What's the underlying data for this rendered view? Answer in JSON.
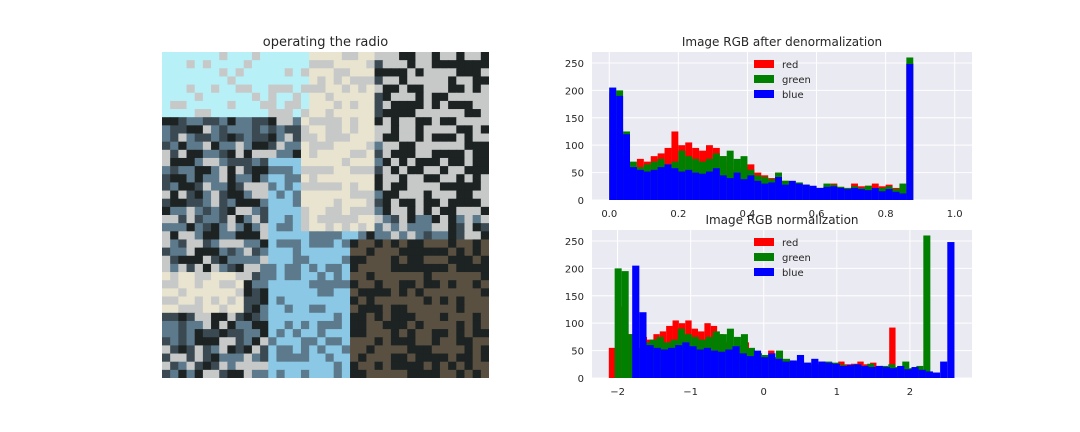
{
  "figure": {
    "image_title": "operating the radio",
    "image_description_colors": [
      "#b8f0f8",
      "#5d7a8c",
      "#3b4a52",
      "#8ac8e6",
      "#c7c9c8",
      "#1c2322",
      "#e8e4cf",
      "#5a5041"
    ]
  },
  "chart_data": [
    {
      "type": "bar",
      "title": "Image RGB after denormalization",
      "xlabel": "",
      "ylabel": "",
      "xlim": [
        -0.05,
        1.05
      ],
      "ylim": [
        0,
        270
      ],
      "xticks": [
        0.0,
        0.2,
        0.4,
        0.6,
        0.8,
        1.0
      ],
      "xtick_labels": [
        "0.0",
        "0.2",
        "0.4",
        "0.6",
        "0.8",
        "1.0"
      ],
      "yticks": [
        0,
        50,
        100,
        150,
        200,
        250
      ],
      "ytick_labels": [
        "0",
        "50",
        "100",
        "150",
        "200",
        "250"
      ],
      "grid": true,
      "legend": "top-center",
      "bin_start": 0.0,
      "bin_width": 0.02,
      "series": [
        {
          "name": "red",
          "color": "#ff0000",
          "values": [
            195,
            130,
            80,
            55,
            75,
            70,
            80,
            85,
            95,
            125,
            100,
            105,
            95,
            90,
            100,
            95,
            80,
            70,
            55,
            60,
            65,
            50,
            45,
            40,
            50,
            35,
            30,
            32,
            28,
            25,
            22,
            25,
            30,
            24,
            22,
            30,
            25,
            26,
            30,
            25,
            28,
            22,
            20,
            250
          ]
        },
        {
          "name": "green",
          "color": "#008000",
          "values": [
            205,
            200,
            125,
            70,
            60,
            65,
            70,
            75,
            65,
            70,
            90,
            80,
            75,
            70,
            75,
            85,
            80,
            90,
            75,
            80,
            55,
            45,
            42,
            38,
            50,
            35,
            30,
            32,
            28,
            25,
            22,
            30,
            28,
            24,
            22,
            25,
            22,
            26,
            20,
            22,
            25,
            20,
            30,
            260
          ]
        },
        {
          "name": "blue",
          "color": "#0000ff",
          "values": [
            205,
            190,
            120,
            60,
            55,
            52,
            55,
            60,
            65,
            58,
            52,
            55,
            50,
            48,
            52,
            58,
            45,
            40,
            50,
            38,
            45,
            35,
            30,
            32,
            42,
            28,
            35,
            30,
            28,
            26,
            22,
            24,
            25,
            22,
            20,
            22,
            20,
            18,
            22,
            16,
            20,
            15,
            12,
            248
          ]
        }
      ]
    },
    {
      "type": "bar",
      "title": "Image RGB normalization",
      "xlabel": "",
      "ylabel": "",
      "xlim": [
        -2.35,
        2.85
      ],
      "ylim": [
        0,
        270
      ],
      "xticks": [
        -2,
        -1,
        0,
        1,
        2
      ],
      "xtick_labels": [
        "−2",
        "−1",
        "0",
        "1",
        "2"
      ],
      "yticks": [
        0,
        50,
        100,
        150,
        200,
        250
      ],
      "ytick_labels": [
        "0",
        "50",
        "100",
        "150",
        "200",
        "250"
      ],
      "grid": true,
      "legend": "top-center",
      "series": [
        {
          "name": "red",
          "color": "#ff0000",
          "bin_start": -2.12,
          "bin_width": 0.0872,
          "values": [
            55,
            190,
            130,
            80,
            55,
            75,
            70,
            80,
            85,
            95,
            105,
            100,
            105,
            90,
            85,
            100,
            95,
            80,
            65,
            55,
            60,
            65,
            50,
            45,
            40,
            50,
            35,
            30,
            32,
            28,
            25,
            22,
            25,
            30,
            24,
            22,
            30,
            25,
            26,
            30,
            25,
            28,
            22,
            20,
            92
          ]
        },
        {
          "name": "green",
          "color": "#008000",
          "bin_start": -2.04,
          "bin_width": 0.096,
          "values": [
            200,
            195,
            80,
            50,
            65,
            70,
            75,
            65,
            70,
            90,
            80,
            75,
            70,
            75,
            85,
            80,
            90,
            75,
            80,
            55,
            45,
            42,
            38,
            50,
            35,
            30,
            32,
            28,
            25,
            22,
            30,
            28,
            24,
            22,
            25,
            22,
            26,
            20,
            22,
            25,
            20,
            30,
            18,
            22,
            260
          ]
        },
        {
          "name": "blue",
          "color": "#0000ff",
          "bin_start": -1.8,
          "bin_width": 0.098,
          "values": [
            205,
            120,
            60,
            55,
            52,
            55,
            60,
            65,
            58,
            52,
            55,
            50,
            48,
            52,
            58,
            45,
            40,
            50,
            38,
            45,
            35,
            30,
            32,
            42,
            28,
            35,
            30,
            28,
            26,
            22,
            24,
            25,
            22,
            20,
            22,
            20,
            18,
            22,
            16,
            20,
            15,
            12,
            10,
            30,
            248
          ]
        }
      ]
    }
  ]
}
